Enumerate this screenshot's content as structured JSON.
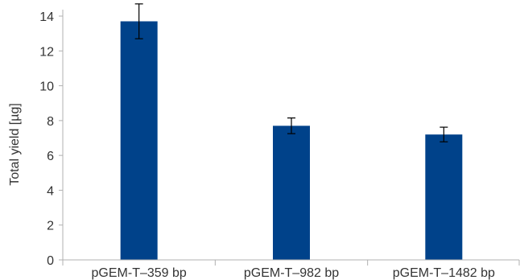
{
  "chart_data": {
    "type": "bar",
    "title": "",
    "xlabel": "",
    "ylabel": "Total yield [µg]",
    "categories": [
      "pGEM-T–359 bp",
      "pGEM-T–982 bp",
      "pGEM-T–1482 bp"
    ],
    "values": [
      13.7,
      7.7,
      7.2
    ],
    "error": [
      1.0,
      0.45,
      0.42
    ],
    "ylim": [
      0,
      14
    ],
    "yticks": [
      "0",
      "2",
      "4",
      "6",
      "8",
      "10",
      "12",
      "14"
    ],
    "grid": false,
    "legend": "none",
    "colors": {
      "bar": "#00428a",
      "axis": "#b0b0b0",
      "error_bar": "#000000"
    }
  }
}
